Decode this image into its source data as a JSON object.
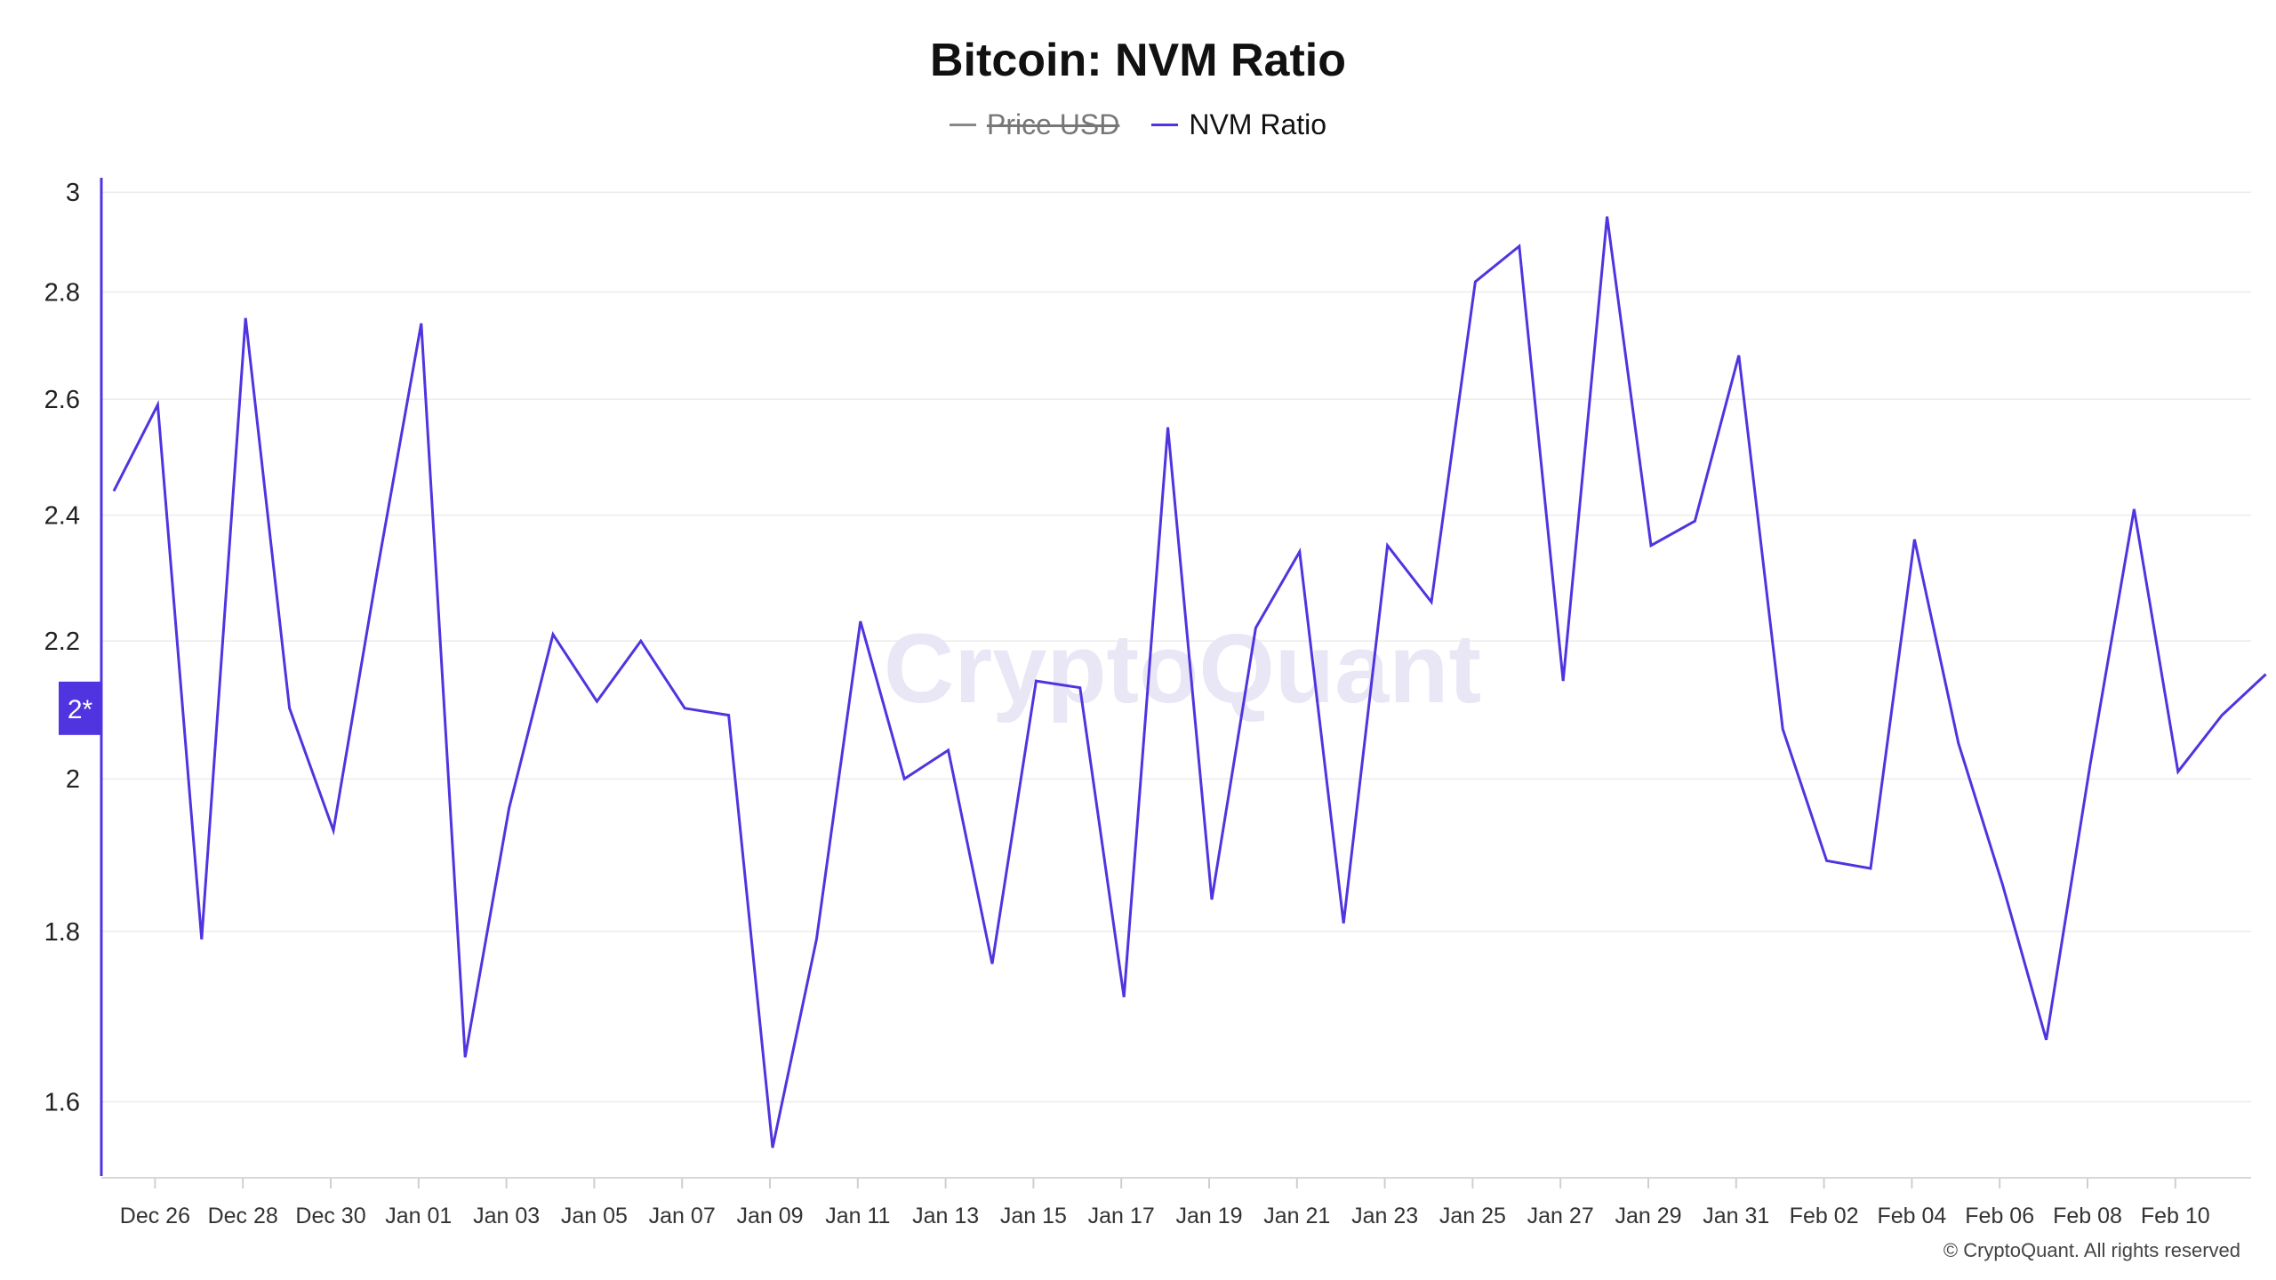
{
  "title": "Bitcoin: NVM Ratio",
  "legend": [
    {
      "label": "Price USD",
      "color": "#888888",
      "hidden": true
    },
    {
      "label": "NVM Ratio",
      "color": "#4f34e0",
      "hidden": false
    }
  ],
  "watermark": "CryptoQuant",
  "copyright": "© CryptoQuant. All rights reserved",
  "y_marker_label": "2*",
  "chart_data": {
    "type": "line",
    "title": "Bitcoin: NVM Ratio",
    "xlabel": "",
    "ylabel": "",
    "y_scale": "log",
    "ylim": [
      1.52,
      3.03
    ],
    "y_ticks": [
      1.6,
      1.8,
      2,
      2.2,
      2.4,
      2.6,
      2.8,
      3
    ],
    "y_marker": 2.1,
    "grid": true,
    "legend_position": "top-center",
    "x_tick_labels": [
      "Dec 26",
      "Dec 28",
      "Dec 30",
      "Jan 01",
      "Jan 03",
      "Jan 05",
      "Jan 07",
      "Jan 09",
      "Jan 11",
      "Jan 13",
      "Jan 15",
      "Jan 17",
      "Jan 19",
      "Jan 21",
      "Jan 23",
      "Jan 25",
      "Jan 27",
      "Jan 29",
      "Jan 31",
      "Feb 02",
      "Feb 04",
      "Feb 06",
      "Feb 08",
      "Feb 10"
    ],
    "x": [
      "Dec 25",
      "Dec 26",
      "Dec 27",
      "Dec 28",
      "Dec 29",
      "Dec 30",
      "Dec 31",
      "Jan 01",
      "Jan 02",
      "Jan 03",
      "Jan 04",
      "Jan 05",
      "Jan 06",
      "Jan 07",
      "Jan 08",
      "Jan 09",
      "Jan 10",
      "Jan 11",
      "Jan 12",
      "Jan 13",
      "Jan 14",
      "Jan 15",
      "Jan 16",
      "Jan 17",
      "Jan 18",
      "Jan 19",
      "Jan 20",
      "Jan 21",
      "Jan 22",
      "Jan 23",
      "Jan 24",
      "Jan 25",
      "Jan 26",
      "Jan 27",
      "Jan 28",
      "Jan 29",
      "Jan 30",
      "Jan 31",
      "Feb 01",
      "Feb 02",
      "Feb 03",
      "Feb 04",
      "Feb 05",
      "Feb 06",
      "Feb 07",
      "Feb 08",
      "Feb 09",
      "Feb 10",
      "Feb 11",
      "Feb 12"
    ],
    "series": [
      {
        "name": "NVM Ratio",
        "color": "#4f34e0",
        "values": [
          2.44,
          2.59,
          1.79,
          2.75,
          2.1,
          1.93,
          2.31,
          2.74,
          1.65,
          1.96,
          2.21,
          2.11,
          2.2,
          2.1,
          2.09,
          1.55,
          1.79,
          2.23,
          2.0,
          2.04,
          1.76,
          2.14,
          2.13,
          1.72,
          2.55,
          1.84,
          2.22,
          2.34,
          1.81,
          2.35,
          2.26,
          2.82,
          2.89,
          2.14,
          2.95,
          2.35,
          2.39,
          2.68,
          2.07,
          1.89,
          1.88,
          2.36,
          2.05,
          1.86,
          1.67,
          2.02,
          2.41,
          2.01,
          2.09,
          2.15
        ]
      }
    ]
  }
}
